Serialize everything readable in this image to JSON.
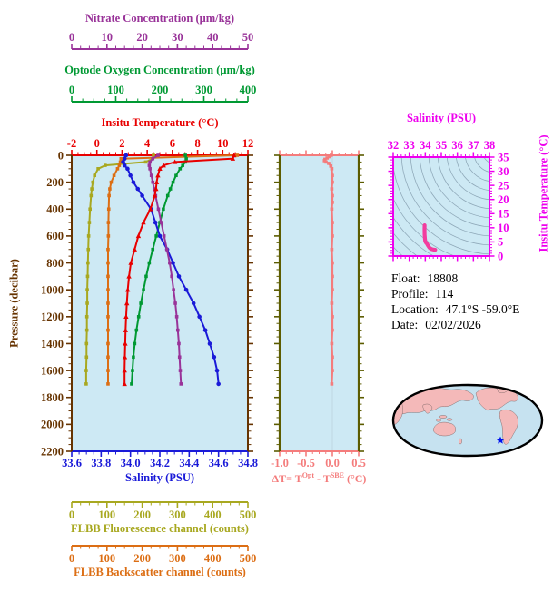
{
  "titles": {
    "nitrate": "Nitrate Concentration (μm/kg)",
    "oxygen": "Optode Oxygen Concentration (μm/kg)",
    "temperature": "Insitu Temperature (°C)",
    "pressure": "Pressure (decibar)",
    "salinity": "Salinity (PSU)",
    "fluorescence": "FLBB Fluorescence channel (counts)",
    "backscatter": "FLBB Backscatter channel (counts)",
    "ts_salinity": "Salinity (PSU)",
    "ts_temperature": "Insitu Temperature (°C)",
    "delta_pre": "ΔT= T",
    "delta_sup1": "Opt",
    "delta_mid": " - T",
    "delta_sup2": "SBE",
    "delta_post": " (°C)"
  },
  "float_info": {
    "rows": [
      {
        "label": "Float:",
        "value": "18808"
      },
      {
        "label": "Profile:",
        "value": "114"
      },
      {
        "label": "Location:",
        "value": "47.1°S -59.0°E"
      },
      {
        "label": "Date:",
        "value": "02/02/2026"
      }
    ]
  },
  "map": {
    "marker_color": "#0011EE",
    "land_color": "#F4B9B9",
    "ocean_color": "#C6E2F0"
  },
  "chart_data": [
    {
      "type": "line",
      "name": "profile-plot",
      "ylabel": "Pressure (decibar)",
      "ylim": [
        0,
        2200
      ],
      "y_ticks": [
        0,
        200,
        400,
        600,
        800,
        1000,
        1200,
        1400,
        1600,
        1800,
        2000,
        2200
      ],
      "y_inverted": true,
      "background": "#CDE9F4",
      "pressure_axis_color": "#663300",
      "x_axes": [
        {
          "id": "nitrate",
          "label": "Nitrate Concentration (μm/kg)",
          "color": "#993399",
          "range": [
            0,
            50
          ],
          "ticks": [
            "0",
            "10",
            "20",
            "30",
            "40",
            "50"
          ],
          "position": "top-outer"
        },
        {
          "id": "oxygen",
          "label": "Optode Oxygen Concentration (μm/kg)",
          "color": "#009933",
          "range": [
            0,
            400
          ],
          "ticks": [
            "0",
            "100",
            "200",
            "300",
            "400"
          ],
          "position": "top-middle"
        },
        {
          "id": "temperature",
          "label": "Insitu Temperature (°C)",
          "color": "#E80000",
          "range": [
            -2,
            12
          ],
          "ticks": [
            "-2",
            "0",
            "2",
            "4",
            "6",
            "8",
            "10",
            "12"
          ],
          "position": "plot-top"
        },
        {
          "id": "salinity",
          "label": "Salinity (PSU)",
          "color": "#1A1AD8",
          "range": [
            33.6,
            34.8
          ],
          "ticks": [
            "33.6",
            "33.8",
            "34.0",
            "34.2",
            "34.4",
            "34.6",
            "34.8"
          ],
          "position": "plot-bottom"
        },
        {
          "id": "fluorescence",
          "label": "FLBB Fluorescence channel (counts)",
          "color": "#A8A820",
          "range": [
            0,
            500
          ],
          "ticks": [
            "0",
            "100",
            "200",
            "300",
            "400",
            "500"
          ],
          "position": "bottom-middle"
        },
        {
          "id": "backscatter",
          "label": "FLBB Backscatter channel (counts)",
          "color": "#DC6E14",
          "range": [
            0,
            500
          ],
          "ticks": [
            "0",
            "100",
            "200",
            "300",
            "400",
            "500"
          ],
          "position": "bottom-outer"
        }
      ],
      "series": [
        {
          "name": "Insitu Temperature (°C)",
          "axis": "temperature",
          "color": "#E80000",
          "marker": "triangle",
          "pressure": [
            0,
            25,
            50,
            75,
            100,
            150,
            200,
            250,
            300,
            400,
            500,
            600,
            700,
            800,
            900,
            1000,
            1100,
            1200,
            1300,
            1400,
            1500,
            1600,
            1700
          ],
          "values": [
            10.9,
            10.8,
            6.2,
            5.3,
            5.0,
            4.85,
            4.75,
            4.7,
            4.6,
            4.25,
            3.7,
            3.3,
            3.0,
            2.7,
            2.55,
            2.45,
            2.38,
            2.32,
            2.28,
            2.25,
            2.22,
            2.2,
            2.2
          ]
        },
        {
          "name": "Salinity (PSU)",
          "axis": "salinity",
          "color": "#1A1AD8",
          "marker": "circle",
          "pressure": [
            0,
            25,
            50,
            75,
            100,
            150,
            200,
            250,
            300,
            400,
            500,
            600,
            700,
            800,
            900,
            1000,
            1100,
            1200,
            1300,
            1400,
            1500,
            1600,
            1700
          ],
          "values": [
            33.97,
            33.96,
            33.95,
            33.96,
            33.98,
            34.0,
            34.02,
            34.05,
            34.08,
            34.14,
            34.17,
            34.2,
            34.25,
            34.29,
            34.33,
            34.38,
            34.43,
            34.47,
            34.51,
            34.54,
            34.57,
            34.59,
            34.6
          ]
        },
        {
          "name": "Optode Oxygen Concentration (μm/kg)",
          "axis": "oxygen",
          "color": "#009933",
          "marker": "square",
          "pressure": [
            0,
            25,
            50,
            75,
            100,
            150,
            200,
            250,
            300,
            400,
            500,
            600,
            700,
            800,
            900,
            1000,
            1100,
            1200,
            1300,
            1400,
            1500,
            1600,
            1700
          ],
          "values": [
            258,
            260,
            258,
            252,
            246,
            237,
            230,
            224,
            218,
            208,
            200,
            192,
            184,
            176,
            169,
            163,
            157,
            152,
            147,
            143,
            140,
            138,
            136
          ]
        },
        {
          "name": "Nitrate Concentration (μm/kg)",
          "axis": "nitrate",
          "color": "#993399",
          "marker": "square",
          "pressure": [
            0,
            25,
            50,
            75,
            100,
            150,
            200,
            250,
            300,
            400,
            500,
            600,
            700,
            800,
            900,
            1000,
            1100,
            1200,
            1300,
            1400,
            1500,
            1600,
            1700
          ],
          "values": [
            24.5,
            23.0,
            22.2,
            22.0,
            22.2,
            22.6,
            23.0,
            23.4,
            23.8,
            24.6,
            25.4,
            26.2,
            27.0,
            27.8,
            28.4,
            28.9,
            29.4,
            29.8,
            30.1,
            30.4,
            30.6,
            30.8,
            31.0
          ]
        },
        {
          "name": "FLBB Fluorescence channel (counts)",
          "axis": "fluorescence",
          "color": "#A8A820",
          "marker": "square",
          "pressure": [
            0,
            25,
            50,
            75,
            100,
            150,
            200,
            250,
            300,
            400,
            500,
            600,
            700,
            800,
            900,
            1000,
            1100,
            1200,
            1300,
            1400,
            1500,
            1600,
            1700
          ],
          "values": [
            232,
            230,
            210,
            95,
            75,
            65,
            60,
            57,
            55,
            52,
            50,
            48,
            47,
            46,
            45,
            44,
            44,
            43,
            43,
            42,
            42,
            41,
            41
          ]
        },
        {
          "name": "FLBB Backscatter channel (counts)",
          "axis": "backscatter",
          "color": "#DC6E14",
          "marker": "square",
          "pressure": [
            0,
            25,
            50,
            75,
            100,
            150,
            200,
            250,
            300,
            400,
            500,
            600,
            700,
            800,
            900,
            1000,
            1100,
            1200,
            1300,
            1400,
            1500,
            1600,
            1700
          ],
          "values": [
            470,
            140,
            138,
            135,
            130,
            120,
            112,
            108,
            106,
            105,
            104,
            104,
            103,
            103,
            103,
            103,
            103,
            103,
            103,
            103,
            103,
            103,
            103
          ]
        }
      ]
    },
    {
      "type": "line",
      "name": "delta-temperature-plot",
      "xlabel": "ΔT= T^Opt - T^SBE (°C)",
      "x_range": [
        -1.0,
        0.5
      ],
      "x_ticks": [
        "-1.0",
        "-0.5",
        "0.0",
        "0.5"
      ],
      "ylim": [
        0,
        2200
      ],
      "background": "#CDE9F4",
      "axis_color": "#F47C7C",
      "rail_color": "#5C5C00",
      "series": [
        {
          "name": "delta-T",
          "color": "#F47C7C",
          "marker": "square",
          "pressure": [
            0,
            10,
            20,
            30,
            40,
            50,
            60,
            80,
            100,
            150,
            200,
            250,
            300,
            350,
            400,
            500,
            600,
            700,
            800,
            900,
            1000,
            1100,
            1200,
            1300,
            1400,
            1500,
            1600,
            1700
          ],
          "values": [
            -0.02,
            -0.05,
            -0.1,
            -0.14,
            -0.15,
            -0.12,
            -0.07,
            -0.03,
            -0.01,
            0.0,
            0.0,
            -0.01,
            0.0,
            0.0,
            -0.01,
            0.0,
            0.0,
            -0.01,
            0.0,
            0.0,
            0.0,
            -0.01,
            0.0,
            0.0,
            -0.01,
            0.0,
            0.0,
            -0.01
          ]
        }
      ]
    },
    {
      "type": "line",
      "name": "ts-diagram",
      "xlabel": "Salinity (PSU)",
      "ylabel": "Insitu Temperature (°C)",
      "x_range": [
        32,
        38
      ],
      "x_ticks": [
        "32",
        "33",
        "34",
        "35",
        "36",
        "37",
        "38"
      ],
      "y_range": [
        0,
        35
      ],
      "y_ticks": [
        "0",
        "5",
        "10",
        "15",
        "20",
        "25",
        "30",
        "35"
      ],
      "background": "#CDE9F4",
      "axis_color": "#EE00EE",
      "contours": "sigma-density-isolines",
      "series": [
        {
          "name": "T-S curve",
          "color": "#F23C9E",
          "salinity": [
            33.96,
            33.95,
            33.96,
            33.98,
            34.0,
            34.05,
            34.1,
            34.17,
            34.25,
            34.33,
            34.42,
            34.5,
            34.57,
            34.62
          ],
          "temperature": [
            10.9,
            9.5,
            7.5,
            6.0,
            5.2,
            4.7,
            4.4,
            3.7,
            3.0,
            2.6,
            2.4,
            2.3,
            2.25,
            2.2
          ]
        }
      ]
    }
  ]
}
